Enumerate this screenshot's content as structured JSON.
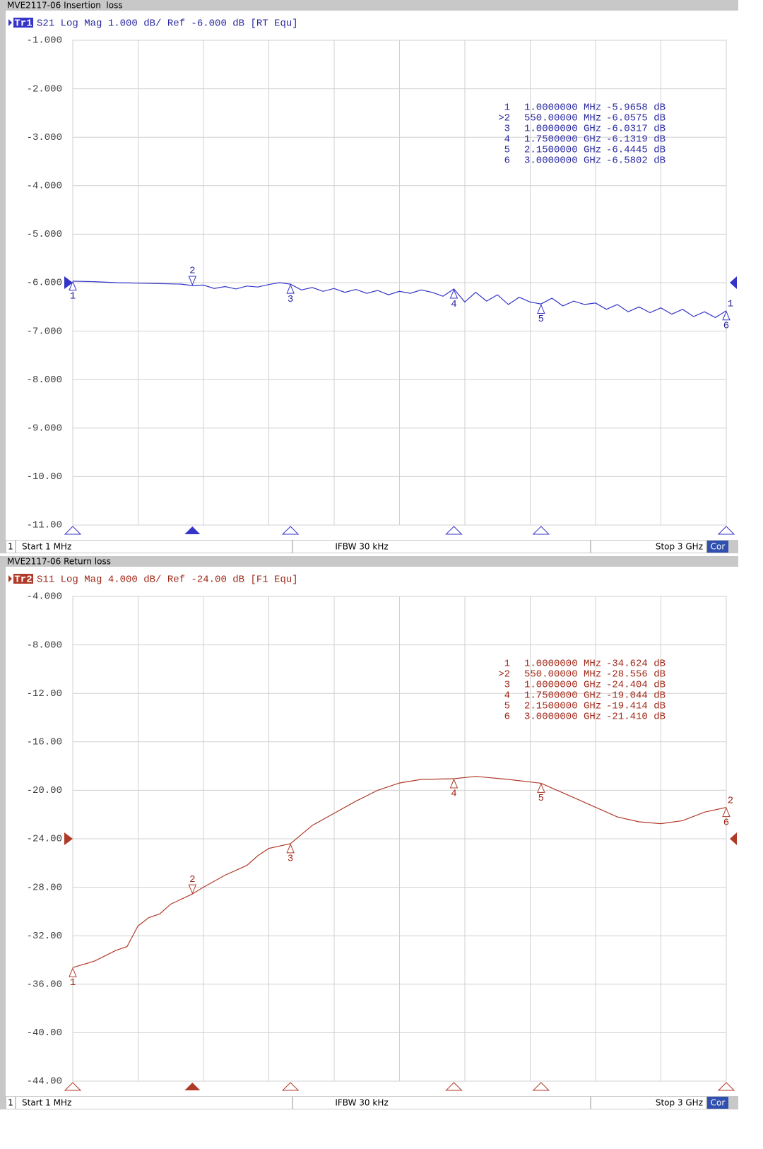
{
  "chart_data": [
    {
      "type": "line",
      "title": "MVE2117-06 Insertion  loss",
      "trace_label": "Tr1",
      "subtitle": "S21 Log Mag 1.000 dB/ Ref -6.000 dB [RT Equ]",
      "color": "#3434c8",
      "text_color": "#2828a0",
      "trace_number": "1",
      "ref_level": -6,
      "x": [
        1,
        100,
        200,
        300,
        400,
        500,
        550,
        600,
        650,
        700,
        750,
        800,
        850,
        900,
        950,
        1000,
        1050,
        1100,
        1150,
        1200,
        1250,
        1300,
        1350,
        1400,
        1450,
        1500,
        1550,
        1600,
        1650,
        1700,
        1750,
        1800,
        1850,
        1900,
        1950,
        2000,
        2050,
        2100,
        2150,
        2200,
        2250,
        2300,
        2350,
        2400,
        2450,
        2500,
        2550,
        2600,
        2650,
        2700,
        2750,
        2800,
        2850,
        2900,
        2950,
        3000
      ],
      "values": [
        -5.97,
        -5.98,
        -6.0,
        -6.01,
        -6.02,
        -6.03,
        -6.06,
        -6.05,
        -6.12,
        -6.08,
        -6.13,
        -6.07,
        -6.09,
        -6.04,
        -6.0,
        -6.03,
        -6.15,
        -6.1,
        -6.18,
        -6.12,
        -6.2,
        -6.14,
        -6.22,
        -6.16,
        -6.25,
        -6.18,
        -6.22,
        -6.15,
        -6.2,
        -6.28,
        -6.13,
        -6.4,
        -6.2,
        -6.38,
        -6.25,
        -6.45,
        -6.3,
        -6.4,
        -6.44,
        -6.32,
        -6.48,
        -6.38,
        -6.45,
        -6.42,
        -6.55,
        -6.45,
        -6.6,
        -6.5,
        -6.62,
        -6.52,
        -6.65,
        -6.55,
        -6.7,
        -6.6,
        -6.72,
        -6.58
      ],
      "xlim": [
        1,
        3000
      ],
      "xticks": [
        1,
        300.9,
        600.8,
        900.7,
        1200.6,
        1500.5,
        1800.4,
        2100.3,
        2400.2,
        2700.1,
        3000
      ],
      "ylim": [
        -11,
        -1
      ],
      "yticks": [
        {
          "value": -1,
          "label": "-1.000"
        },
        {
          "value": -2,
          "label": "-2.000"
        },
        {
          "value": -3,
          "label": "-3.000"
        },
        {
          "value": -4,
          "label": "-4.000"
        },
        {
          "value": -5,
          "label": "-5.000"
        },
        {
          "value": -6,
          "label": "-6.000"
        },
        {
          "value": -7,
          "label": "-7.000"
        },
        {
          "value": -8,
          "label": "-8.000"
        },
        {
          "value": -9,
          "label": "-9.000"
        },
        {
          "value": -10,
          "label": "-10.00"
        },
        {
          "value": -11,
          "label": "-11.00"
        }
      ],
      "grid": true,
      "markers": [
        {
          "id": "1",
          "table_id": "1",
          "x": 1,
          "x_label": "1.0000000 MHz",
          "y": -5.9658,
          "y_label": "-5.9658 dB",
          "active": false
        },
        {
          "id": "2",
          "table_id": ">2",
          "x": 550,
          "x_label": "550.00000 MHz",
          "y": -6.0575,
          "y_label": "-6.0575 dB",
          "active": true
        },
        {
          "id": "3",
          "table_id": "3",
          "x": 1000,
          "x_label": "1.0000000 GHz",
          "y": -6.0317,
          "y_label": "-6.0317 dB",
          "active": false
        },
        {
          "id": "4",
          "table_id": "4",
          "x": 1750,
          "x_label": "1.7500000 GHz",
          "y": -6.1319,
          "y_label": "-6.1319 dB",
          "active": false
        },
        {
          "id": "5",
          "table_id": "5",
          "x": 2150,
          "x_label": "2.1500000 GHz",
          "y": -6.4445,
          "y_label": "-6.4445 dB",
          "active": false
        },
        {
          "id": "6",
          "table_id": "6",
          "x": 3000,
          "x_label": "3.0000000 GHz",
          "y": -6.5802,
          "y_label": "-6.5802 dB",
          "active": false
        }
      ],
      "footer": {
        "channel": "1",
        "start": "Start 1 MHz",
        "ifbw": "IFBW 30 kHz",
        "stop": "Stop 3 GHz",
        "correction": "Cor"
      }
    },
    {
      "type": "line",
      "title": "MVE2117-06 Return loss",
      "trace_label": "Tr2",
      "subtitle": "S11 Log Mag 4.000 dB/ Ref -24.00 dB [F1 Equ]",
      "color": "#b03a28",
      "text_color": "#a02818",
      "trace_number": "2",
      "ref_level": -24,
      "x": [
        1,
        100,
        200,
        250,
        300,
        350,
        400,
        450,
        550,
        600,
        700,
        800,
        850,
        900,
        1000,
        1100,
        1200,
        1300,
        1400,
        1500,
        1600,
        1750,
        1850,
        2000,
        2150,
        2300,
        2500,
        2600,
        2700,
        2800,
        2900,
        3000
      ],
      "values": [
        -34.624,
        -34.1,
        -33.2,
        -32.9,
        -31.2,
        -30.5,
        -30.2,
        -29.4,
        -28.556,
        -28.0,
        -27.0,
        -26.2,
        -25.4,
        -24.8,
        -24.404,
        -22.9,
        -21.9,
        -20.9,
        -20.0,
        -19.4,
        -19.1,
        -19.044,
        -18.85,
        -19.1,
        -19.414,
        -20.6,
        -22.2,
        -22.6,
        -22.75,
        -22.5,
        -21.8,
        -21.41
      ],
      "xlim": [
        1,
        3000
      ],
      "xticks": [
        1,
        300.9,
        600.8,
        900.7,
        1200.6,
        1500.5,
        1800.4,
        2100.3,
        2400.2,
        2700.1,
        3000
      ],
      "ylim": [
        -44,
        -4
      ],
      "yticks": [
        {
          "value": -4,
          "label": "-4.000"
        },
        {
          "value": -8,
          "label": "-8.000"
        },
        {
          "value": -12,
          "label": "-12.00"
        },
        {
          "value": -16,
          "label": "-16.00"
        },
        {
          "value": -20,
          "label": "-20.00"
        },
        {
          "value": -24,
          "label": "-24.00"
        },
        {
          "value": -28,
          "label": "-28.00"
        },
        {
          "value": -32,
          "label": "-32.00"
        },
        {
          "value": -36,
          "label": "-36.00"
        },
        {
          "value": -40,
          "label": "-40.00"
        },
        {
          "value": -44,
          "label": "-44.00"
        }
      ],
      "grid": true,
      "markers": [
        {
          "id": "1",
          "table_id": "1",
          "x": 1,
          "x_label": "1.0000000 MHz",
          "y": -34.624,
          "y_label": "-34.624 dB",
          "active": false
        },
        {
          "id": "2",
          "table_id": ">2",
          "x": 550,
          "x_label": "550.00000 MHz",
          "y": -28.556,
          "y_label": "-28.556 dB",
          "active": true
        },
        {
          "id": "3",
          "table_id": "3",
          "x": 1000,
          "x_label": "1.0000000 GHz",
          "y": -24.404,
          "y_label": "-24.404 dB",
          "active": false
        },
        {
          "id": "4",
          "table_id": "4",
          "x": 1750,
          "x_label": "1.7500000 GHz",
          "y": -19.044,
          "y_label": "-19.044 dB",
          "active": false
        },
        {
          "id": "5",
          "table_id": "5",
          "x": 2150,
          "x_label": "2.1500000 GHz",
          "y": -19.414,
          "y_label": "-19.414 dB",
          "active": false
        },
        {
          "id": "6",
          "table_id": "6",
          "x": 3000,
          "x_label": "3.0000000 GHz",
          "y": -21.41,
          "y_label": "-21.410 dB",
          "active": false
        }
      ],
      "footer": {
        "channel": "1",
        "start": "Start 1 MHz",
        "ifbw": "IFBW 30 kHz",
        "stop": "Stop 3 GHz",
        "correction": "Cor"
      }
    }
  ]
}
